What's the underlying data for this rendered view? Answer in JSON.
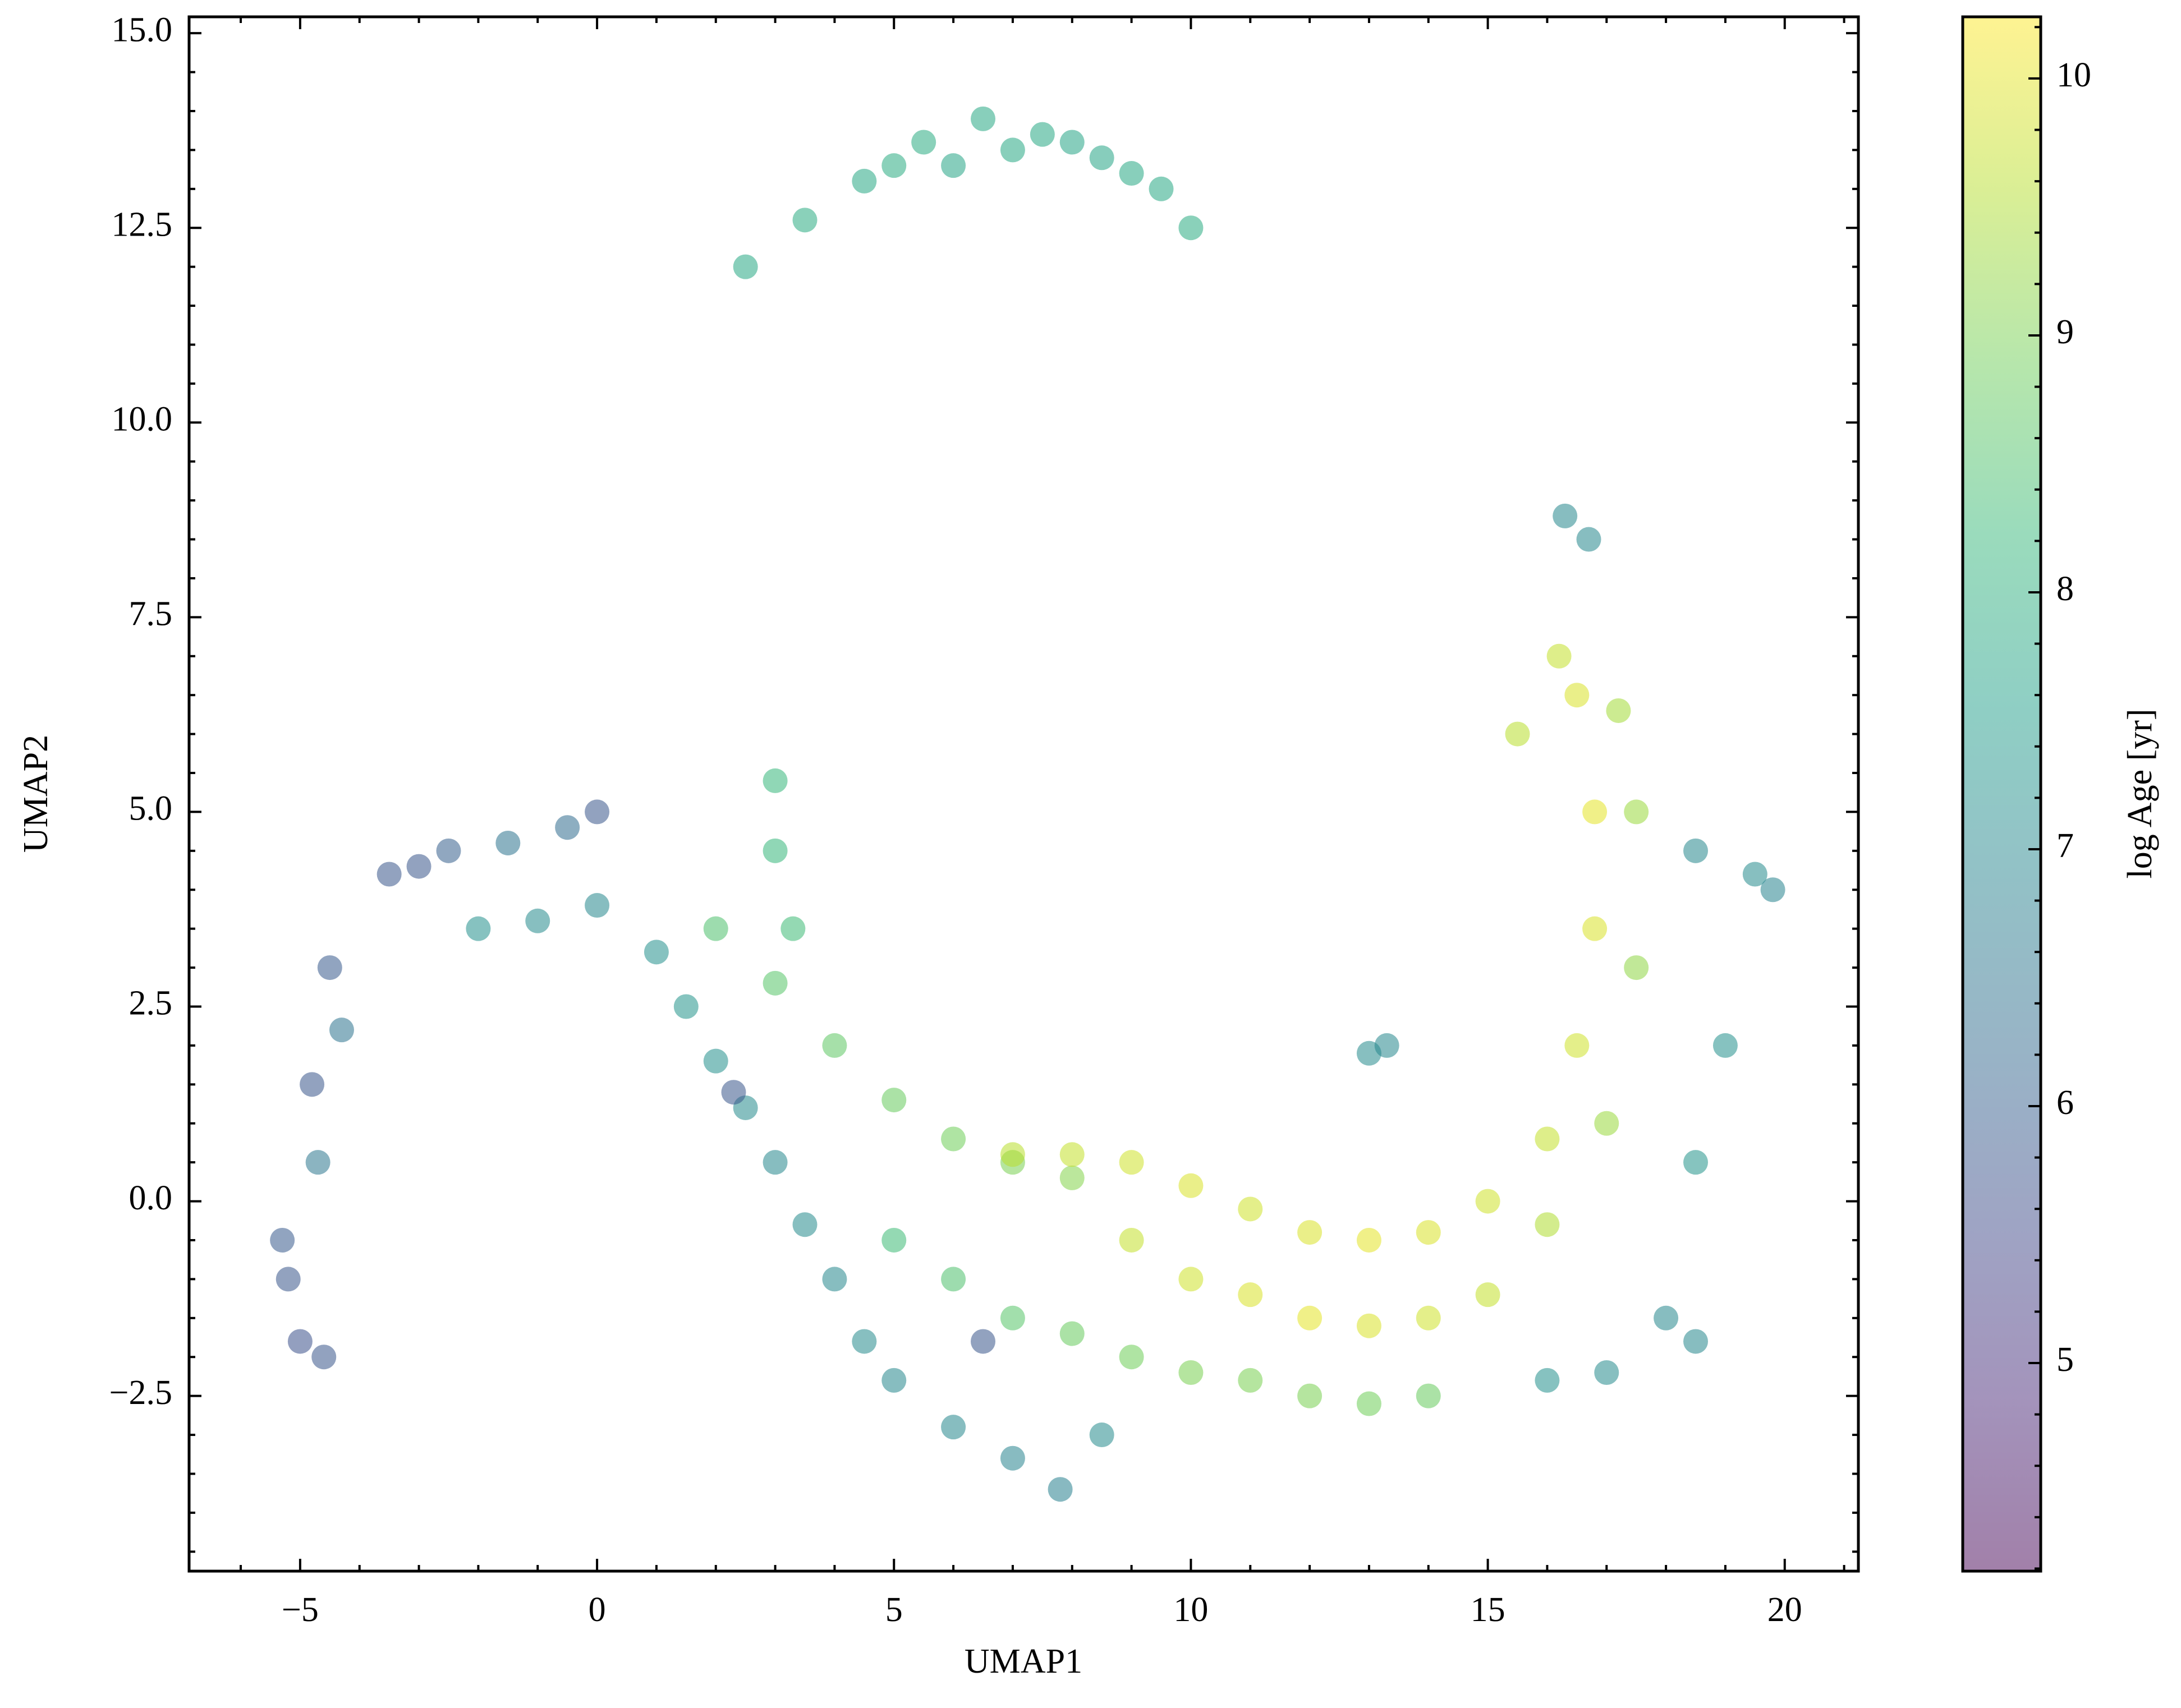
{
  "chart_data": {
    "type": "scatter",
    "xlabel": "UMAP1",
    "ylabel": "UMAP2",
    "colorbar_label": "log Age [yr]",
    "colormap": "viridis",
    "xlim": [
      -6.87,
      21.24
    ],
    "ylim": [
      -4.75,
      15.21
    ],
    "clim": [
      4.19,
      10.24
    ],
    "xticks": [
      {
        "value": -5,
        "label": "−5"
      },
      0,
      5,
      10,
      15,
      20
    ],
    "yticks": [
      {
        "value": -2.5,
        "label": "−2.5"
      },
      {
        "value": 0,
        "label": "0.0"
      },
      2.5,
      {
        "value": 5,
        "label": "5.0"
      },
      7.5,
      {
        "value": 10,
        "label": "10.0"
      },
      12.5,
      {
        "value": 15,
        "label": "15.0"
      }
    ],
    "cticks": [
      5,
      6,
      7,
      8,
      9,
      10
    ],
    "x": [
      2.5,
      3.5,
      4.5,
      5.5,
      6.5,
      7.5,
      8.5,
      9.5,
      10.0,
      6.0,
      7.0,
      5.0,
      8.0,
      9.0,
      -5.2,
      -5.0,
      -4.6,
      -5.3,
      -4.8,
      -4.5,
      -3.5,
      -2.5,
      -1.5,
      -0.5,
      0.0,
      -4.7,
      -4.3,
      -3.0,
      -2.0,
      -1.0,
      0.0,
      1.0,
      1.5,
      2.0,
      2.5,
      3.0,
      3.5,
      4.0,
      4.5,
      5.0,
      6.0,
      7.0,
      7.8,
      8.5,
      2.3,
      6.5,
      2.0,
      3.0,
      4.0,
      5.0,
      6.0,
      7.0,
      8.0,
      5.0,
      6.0,
      7.0,
      8.0,
      9.0,
      10.0,
      11.0,
      12.0,
      13.0,
      14.0,
      7.0,
      8.0,
      9.0,
      10.0,
      11.0,
      12.0,
      13.0,
      14.0,
      15.0,
      16.0,
      16.5,
      16.8,
      16.8,
      16.5,
      16.2,
      15.5,
      9.0,
      10.0,
      11.0,
      12.0,
      13.0,
      14.0,
      15.0,
      16.0,
      17.0,
      17.5,
      17.5,
      17.2,
      18.5,
      19.5,
      19.8,
      19.0,
      18.5,
      18.0,
      17.0,
      18.5,
      16.0,
      16.3,
      16.7,
      13.0,
      13.3,
      3.0,
      3.0,
      3.3
    ],
    "values": [
      12.0,
      12.6,
      13.1,
      13.6,
      13.9,
      13.7,
      13.4,
      13.0,
      12.5,
      13.3,
      13.5,
      13.3,
      13.6,
      13.2,
      -1.0,
      -1.8,
      -2.0,
      -0.5,
      1.5,
      3.0,
      4.2,
      4.5,
      4.6,
      4.8,
      5.0,
      0.5,
      2.2,
      4.3,
      3.5,
      3.6,
      3.8,
      3.2,
      2.5,
      1.8,
      1.2,
      0.5,
      -0.3,
      -1.0,
      -1.8,
      -2.3,
      -2.9,
      -3.3,
      -3.7,
      -3.0,
      1.4,
      -1.8,
      3.5,
      2.8,
      2.0,
      1.3,
      0.8,
      0.5,
      0.3,
      -0.5,
      -1.0,
      -1.5,
      -1.7,
      -2.0,
      -2.2,
      -2.3,
      -2.5,
      -2.6,
      -2.5,
      0.6,
      0.6,
      0.5,
      0.2,
      -0.1,
      -0.4,
      -0.5,
      -0.4,
      0.0,
      0.8,
      2.0,
      3.5,
      5.0,
      6.5,
      7.0,
      6.0,
      -0.5,
      -1.0,
      -1.2,
      -1.5,
      -1.6,
      -1.5,
      -1.2,
      -0.3,
      1.0,
      3.0,
      5.0,
      6.3,
      4.5,
      4.2,
      4.0,
      2.0,
      0.5,
      -1.5,
      -2.2,
      -1.8,
      -2.3,
      8.8,
      8.5,
      1.9,
      2.0,
      5.4,
      4.5,
      3.5
    ],
    "color_values": [
      7.8,
      7.9,
      7.8,
      7.9,
      7.8,
      7.8,
      7.7,
      7.8,
      7.9,
      7.7,
      7.8,
      7.9,
      7.7,
      7.8,
      5.8,
      5.7,
      5.8,
      5.9,
      5.8,
      5.9,
      5.8,
      6.0,
      6.5,
      6.3,
      5.8,
      6.6,
      6.5,
      5.8,
      7.2,
      7.1,
      7.0,
      7.2,
      7.3,
      7.2,
      7.1,
      7.0,
      7.1,
      7.0,
      7.1,
      7.0,
      7.0,
      6.9,
      6.8,
      7.1,
      5.8,
      5.8,
      8.5,
      8.6,
      8.7,
      8.8,
      8.9,
      9.0,
      9.1,
      8.3,
      8.5,
      8.6,
      8.8,
      8.9,
      9.0,
      9.0,
      9.0,
      8.9,
      8.8,
      9.6,
      9.7,
      9.8,
      9.9,
      9.8,
      9.9,
      10.0,
      9.9,
      9.8,
      9.7,
      9.8,
      9.9,
      10.0,
      9.9,
      9.7,
      9.6,
      9.7,
      9.8,
      9.9,
      10.0,
      9.9,
      9.8,
      9.7,
      9.5,
      9.3,
      9.2,
      9.3,
      9.4,
      7.0,
      7.1,
      6.9,
      7.2,
      7.3,
      7.0,
      7.1,
      7.0,
      7.2,
      7.0,
      7.0,
      7.1,
      7.0,
      8.2,
      8.2,
      8.3
    ]
  }
}
